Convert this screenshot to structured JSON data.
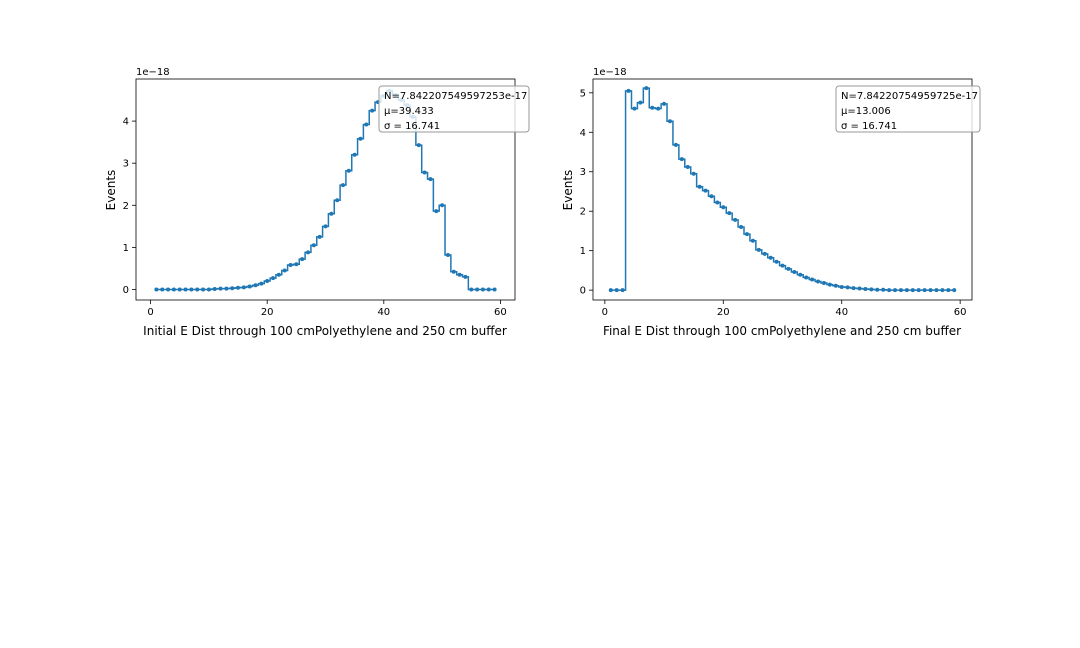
{
  "chart_data": [
    {
      "type": "line",
      "xlabel": "Initial E Dist through 100 cmPolyethylene and 250 cm buffer",
      "ylabel": "Events",
      "offset_label": "1e−18",
      "xlim": [
        -2.5,
        62.5
      ],
      "ylim": [
        -0.25,
        5.0
      ],
      "xticks": [
        0,
        20,
        40,
        60
      ],
      "yticks": [
        0,
        1,
        2,
        3,
        4
      ],
      "drawstyle": "steps-mid",
      "color": "#1f77b4",
      "legend": {
        "placement": "top-right",
        "lines": [
          "N=7.842207549597253e-17",
          "μ=39.433",
          "σ = 16.741"
        ]
      },
      "x": [
        1,
        2,
        3,
        4,
        5,
        6,
        7,
        8,
        9,
        10,
        11,
        12,
        13,
        14,
        15,
        16,
        17,
        18,
        19,
        20,
        21,
        22,
        23,
        24,
        25,
        26,
        27,
        28,
        29,
        30,
        31,
        32,
        33,
        34,
        35,
        36,
        37,
        38,
        39,
        40,
        41,
        42,
        43,
        44,
        45,
        46,
        47,
        48,
        49,
        50,
        51,
        52,
        53,
        54,
        55,
        56,
        57,
        58,
        59
      ],
      "y": [
        0.0,
        0.0,
        0.0,
        0.0,
        0.0,
        0.0,
        0.0,
        0.0,
        0.0,
        0.0,
        0.01,
        0.02,
        0.02,
        0.03,
        0.04,
        0.05,
        0.07,
        0.1,
        0.14,
        0.2,
        0.27,
        0.35,
        0.45,
        0.58,
        0.6,
        0.72,
        0.88,
        1.05,
        1.25,
        1.5,
        1.8,
        2.12,
        2.48,
        2.82,
        3.2,
        3.58,
        3.92,
        4.25,
        4.45,
        4.6,
        4.72,
        4.62,
        4.5,
        4.38,
        4.1,
        3.43,
        2.78,
        2.62,
        1.86,
        2.0,
        0.82,
        0.42,
        0.35,
        0.3,
        0.0,
        0.0,
        0.0,
        0.0,
        0.0
      ]
    },
    {
      "type": "line",
      "xlabel": "Final E Dist through 100 cmPolyethylene and 250 cm buffer",
      "ylabel": "Events",
      "offset_label": "1e−18",
      "xlim": [
        -2.0,
        62.0
      ],
      "ylim": [
        -0.25,
        5.35
      ],
      "xticks": [
        0,
        20,
        40,
        60
      ],
      "yticks": [
        0,
        1,
        2,
        3,
        4,
        5
      ],
      "drawstyle": "steps-mid",
      "color": "#1f77b4",
      "legend": {
        "placement": "top-right",
        "lines": [
          "N=7.84220754959725e-17",
          "μ=13.006",
          "σ = 16.741"
        ]
      },
      "x": [
        1,
        2,
        3,
        4,
        5,
        6,
        7,
        8,
        9,
        10,
        11,
        12,
        13,
        14,
        15,
        16,
        17,
        18,
        19,
        20,
        21,
        22,
        23,
        24,
        25,
        26,
        27,
        28,
        29,
        30,
        31,
        32,
        33,
        34,
        35,
        36,
        37,
        38,
        39,
        40,
        41,
        42,
        43,
        44,
        45,
        46,
        47,
        48,
        49,
        50,
        51,
        52,
        53,
        54,
        55,
        56,
        57,
        58,
        59
      ],
      "y": [
        0.0,
        0.0,
        0.0,
        5.05,
        4.6,
        4.75,
        5.12,
        4.62,
        4.6,
        4.72,
        4.28,
        3.68,
        3.32,
        3.12,
        2.95,
        2.62,
        2.52,
        2.38,
        2.22,
        2.1,
        1.95,
        1.78,
        1.6,
        1.42,
        1.25,
        1.02,
        0.92,
        0.82,
        0.72,
        0.62,
        0.54,
        0.46,
        0.39,
        0.32,
        0.27,
        0.22,
        0.18,
        0.14,
        0.11,
        0.08,
        0.07,
        0.05,
        0.04,
        0.03,
        0.02,
        0.01,
        0.01,
        0.0,
        0.0,
        0.0,
        0.0,
        0.0,
        0.0,
        0.0,
        0.0,
        0.0,
        0.0,
        0.0,
        0.0
      ]
    }
  ]
}
